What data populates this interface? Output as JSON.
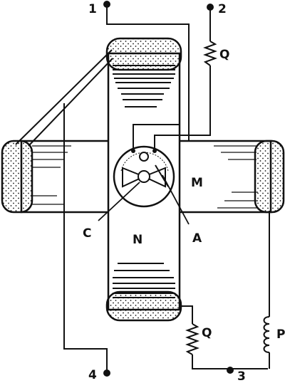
{
  "diagram": {
    "labels": {
      "terminal_1": "1",
      "terminal_2": "2",
      "terminal_3": "3",
      "terminal_4": "4",
      "resistor_top": "Q",
      "resistor_bottom": "Q",
      "coil": "P",
      "region_m": "M",
      "region_n": "N",
      "pointer_c": "C",
      "pointer_a": "A"
    },
    "colors": {
      "ink": "#111111",
      "paper": "#ffffff"
    }
  }
}
